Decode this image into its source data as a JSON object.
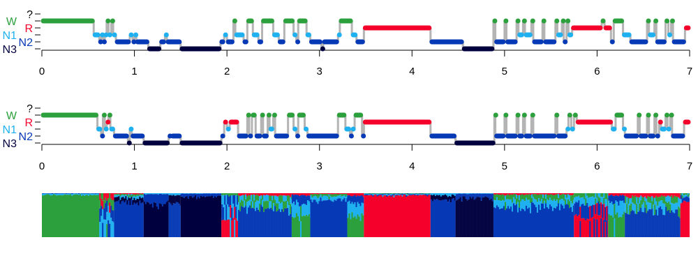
{
  "chart_data": [
    {
      "type": "line",
      "title": "",
      "xlabel": "",
      "ylabel": "",
      "xlim": [
        0,
        7
      ],
      "x_ticks": [
        "0",
        "1",
        "2",
        "3",
        "4",
        "5",
        "6",
        "7"
      ],
      "stages": [
        "?",
        "W",
        "R",
        "N1",
        "N2",
        "N3"
      ],
      "segments": [
        [
          0,
          0.56,
          "W"
        ],
        [
          0.56,
          0.62,
          "N1"
        ],
        [
          0.62,
          0.64,
          "N2"
        ],
        [
          0.64,
          0.66,
          "N1"
        ],
        [
          0.66,
          0.68,
          "N2"
        ],
        [
          0.68,
          0.7,
          "N1"
        ],
        [
          0.7,
          0.72,
          "W"
        ],
        [
          0.72,
          0.75,
          "N1"
        ],
        [
          0.75,
          0.77,
          "W"
        ],
        [
          0.77,
          0.8,
          "N1"
        ],
        [
          0.8,
          0.95,
          "N2"
        ],
        [
          0.95,
          0.98,
          "N1"
        ],
        [
          0.98,
          1.0,
          "N2"
        ],
        [
          1.0,
          1.02,
          "N1"
        ],
        [
          1.02,
          1.15,
          "N2"
        ],
        [
          1.15,
          1.28,
          "N3"
        ],
        [
          1.28,
          1.33,
          "N2"
        ],
        [
          1.33,
          1.35,
          "N1"
        ],
        [
          1.35,
          1.5,
          "N2"
        ],
        [
          1.5,
          1.93,
          "N3"
        ],
        [
          1.93,
          1.97,
          "N2"
        ],
        [
          1.97,
          2.0,
          "N1"
        ],
        [
          2.0,
          2.07,
          "N2"
        ],
        [
          2.07,
          2.09,
          "W"
        ],
        [
          2.09,
          2.18,
          "N1"
        ],
        [
          2.18,
          2.22,
          "N2"
        ],
        [
          2.22,
          2.28,
          "W"
        ],
        [
          2.28,
          2.34,
          "N1"
        ],
        [
          2.34,
          2.38,
          "N2"
        ],
        [
          2.38,
          2.5,
          "W"
        ],
        [
          2.5,
          2.56,
          "N1"
        ],
        [
          2.56,
          2.62,
          "N2"
        ],
        [
          2.62,
          2.72,
          "W"
        ],
        [
          2.72,
          2.75,
          "N1"
        ],
        [
          2.75,
          2.77,
          "N2"
        ],
        [
          2.77,
          2.86,
          "W"
        ],
        [
          2.86,
          2.9,
          "N1"
        ],
        [
          2.9,
          3.02,
          "N2"
        ],
        [
          3.02,
          3.04,
          "N3"
        ],
        [
          3.04,
          3.2,
          "N2"
        ],
        [
          3.2,
          3.22,
          "N1"
        ],
        [
          3.22,
          3.35,
          "W"
        ],
        [
          3.35,
          3.4,
          "N1"
        ],
        [
          3.4,
          3.48,
          "N2"
        ],
        [
          3.48,
          4.2,
          "R"
        ],
        [
          4.2,
          4.55,
          "N2"
        ],
        [
          4.55,
          4.88,
          "N3"
        ],
        [
          4.88,
          4.9,
          "W"
        ],
        [
          4.9,
          5.0,
          "N2"
        ],
        [
          5.0,
          5.02,
          "W"
        ],
        [
          5.02,
          5.13,
          "N2"
        ],
        [
          5.13,
          5.15,
          "W"
        ],
        [
          5.15,
          5.2,
          "N1"
        ],
        [
          5.2,
          5.22,
          "W"
        ],
        [
          5.22,
          5.29,
          "N1"
        ],
        [
          5.29,
          5.31,
          "W"
        ],
        [
          5.31,
          5.41,
          "N2"
        ],
        [
          5.41,
          5.43,
          "W"
        ],
        [
          5.43,
          5.55,
          "N2"
        ],
        [
          5.55,
          5.57,
          "W"
        ],
        [
          5.57,
          5.62,
          "N1"
        ],
        [
          5.62,
          5.64,
          "W"
        ],
        [
          5.64,
          5.67,
          "N2"
        ],
        [
          5.67,
          5.69,
          "W"
        ],
        [
          5.69,
          5.73,
          "N1"
        ],
        [
          5.73,
          6.05,
          "R"
        ],
        [
          6.05,
          6.08,
          "W"
        ],
        [
          6.08,
          6.15,
          "R"
        ],
        [
          6.15,
          6.18,
          "N2"
        ],
        [
          6.18,
          6.28,
          "W"
        ],
        [
          6.28,
          6.36,
          "N1"
        ],
        [
          6.36,
          6.54,
          "N2"
        ],
        [
          6.54,
          6.56,
          "W"
        ],
        [
          6.56,
          6.62,
          "N1"
        ],
        [
          6.62,
          6.64,
          "W"
        ],
        [
          6.64,
          6.74,
          "N2"
        ],
        [
          6.74,
          6.77,
          "W"
        ],
        [
          6.77,
          6.8,
          "N1"
        ],
        [
          6.8,
          6.82,
          "W"
        ],
        [
          6.82,
          6.95,
          "N2"
        ],
        [
          6.95,
          7.0,
          "R"
        ]
      ]
    },
    {
      "type": "line",
      "title": "",
      "xlabel": "",
      "ylabel": "",
      "xlim": [
        0,
        7
      ],
      "x_ticks": [
        "0",
        "1",
        "2",
        "3",
        "4",
        "5",
        "6",
        "7"
      ],
      "stages": [
        "?",
        "W",
        "R",
        "N1",
        "N2",
        "N3"
      ],
      "segments": [
        [
          0,
          0.6,
          "W"
        ],
        [
          0.6,
          0.64,
          "N1"
        ],
        [
          0.64,
          0.66,
          "N2"
        ],
        [
          0.66,
          0.68,
          "W"
        ],
        [
          0.68,
          0.7,
          "N1"
        ],
        [
          0.7,
          0.72,
          "R"
        ],
        [
          0.72,
          0.74,
          "W"
        ],
        [
          0.74,
          0.78,
          "N1"
        ],
        [
          0.78,
          0.93,
          "N2"
        ],
        [
          0.93,
          0.95,
          "N3"
        ],
        [
          0.95,
          0.97,
          "N1"
        ],
        [
          0.97,
          1.1,
          "N2"
        ],
        [
          1.1,
          1.37,
          "N3"
        ],
        [
          1.37,
          1.4,
          "N2"
        ],
        [
          1.4,
          1.5,
          "N2"
        ],
        [
          1.5,
          1.94,
          "N3"
        ],
        [
          1.94,
          1.97,
          "N2"
        ],
        [
          1.97,
          2.0,
          "R"
        ],
        [
          2.0,
          2.03,
          "N1"
        ],
        [
          2.03,
          2.12,
          "R"
        ],
        [
          2.12,
          2.22,
          "N2"
        ],
        [
          2.22,
          2.24,
          "W"
        ],
        [
          2.24,
          2.27,
          "N2"
        ],
        [
          2.27,
          2.31,
          "W"
        ],
        [
          2.31,
          2.37,
          "N2"
        ],
        [
          2.37,
          2.39,
          "W"
        ],
        [
          2.39,
          2.44,
          "N2"
        ],
        [
          2.44,
          2.46,
          "W"
        ],
        [
          2.46,
          2.5,
          "N1"
        ],
        [
          2.5,
          2.52,
          "W"
        ],
        [
          2.52,
          2.66,
          "N2"
        ],
        [
          2.66,
          2.72,
          "W"
        ],
        [
          2.72,
          2.75,
          "N1"
        ],
        [
          2.75,
          2.77,
          "N2"
        ],
        [
          2.77,
          2.84,
          "W"
        ],
        [
          2.84,
          2.87,
          "N1"
        ],
        [
          2.87,
          3.2,
          "N2"
        ],
        [
          3.2,
          3.28,
          "W"
        ],
        [
          3.28,
          3.33,
          "N1"
        ],
        [
          3.33,
          3.35,
          "N2"
        ],
        [
          3.35,
          3.38,
          "N1"
        ],
        [
          3.38,
          3.46,
          "W"
        ],
        [
          3.46,
          3.48,
          "N2"
        ],
        [
          3.48,
          4.2,
          "R"
        ],
        [
          4.2,
          4.47,
          "N2"
        ],
        [
          4.47,
          4.89,
          "N3"
        ],
        [
          4.89,
          4.9,
          "W"
        ],
        [
          4.9,
          5.0,
          "N2"
        ],
        [
          5.0,
          5.02,
          "W"
        ],
        [
          5.02,
          5.13,
          "N2"
        ],
        [
          5.13,
          5.15,
          "W"
        ],
        [
          5.15,
          5.2,
          "N2"
        ],
        [
          5.2,
          5.22,
          "W"
        ],
        [
          5.22,
          5.29,
          "N2"
        ],
        [
          5.29,
          5.31,
          "W"
        ],
        [
          5.31,
          5.55,
          "N2"
        ],
        [
          5.55,
          5.57,
          "W"
        ],
        [
          5.57,
          5.67,
          "N2"
        ],
        [
          5.67,
          5.69,
          "N1"
        ],
        [
          5.69,
          5.72,
          "W"
        ],
        [
          5.72,
          5.75,
          "N1"
        ],
        [
          5.75,
          5.78,
          "W"
        ],
        [
          5.78,
          6.16,
          "R"
        ],
        [
          6.16,
          6.2,
          "N1"
        ],
        [
          6.2,
          6.28,
          "W"
        ],
        [
          6.28,
          6.3,
          "N1"
        ],
        [
          6.3,
          6.44,
          "N2"
        ],
        [
          6.44,
          6.46,
          "W"
        ],
        [
          6.46,
          6.54,
          "N2"
        ],
        [
          6.54,
          6.56,
          "W"
        ],
        [
          6.56,
          6.62,
          "N2"
        ],
        [
          6.62,
          6.64,
          "W"
        ],
        [
          6.64,
          6.67,
          "N2"
        ],
        [
          6.67,
          6.69,
          "R"
        ],
        [
          6.69,
          6.74,
          "N1"
        ],
        [
          6.74,
          6.76,
          "W"
        ],
        [
          6.76,
          6.79,
          "N1"
        ],
        [
          6.79,
          6.81,
          "W"
        ],
        [
          6.81,
          6.94,
          "N2"
        ],
        [
          6.94,
          7.0,
          "R"
        ]
      ]
    },
    {
      "type": "area",
      "title": "",
      "description_of_values": "stacked stage probabilities per time span",
      "xlim": [
        0,
        7
      ],
      "ylim": [
        0,
        1
      ],
      "order": [
        "W",
        "R",
        "N1",
        "N2",
        "N3"
      ],
      "segments": [
        [
          0,
          0.62,
          [
            0.96,
            0,
            0.03,
            0.01,
            0
          ]
        ],
        [
          0.62,
          0.78,
          [
            0.2,
            0.15,
            0.35,
            0.3,
            0
          ]
        ],
        [
          0.78,
          1.1,
          [
            0.03,
            0.02,
            0.05,
            0.8,
            0.1
          ]
        ],
        [
          1.1,
          1.37,
          [
            0,
            0,
            0.02,
            0.2,
            0.78
          ]
        ],
        [
          1.37,
          1.5,
          [
            0,
            0,
            0.05,
            0.75,
            0.2
          ]
        ],
        [
          1.5,
          1.94,
          [
            0,
            0,
            0.01,
            0.07,
            0.92
          ]
        ],
        [
          1.94,
          2.12,
          [
            0.05,
            0.35,
            0.3,
            0.3,
            0
          ]
        ],
        [
          2.12,
          2.7,
          [
            0.15,
            0.05,
            0.15,
            0.65,
            0
          ]
        ],
        [
          2.7,
          2.9,
          [
            0.45,
            0.05,
            0.3,
            0.2,
            0
          ]
        ],
        [
          2.9,
          3.3,
          [
            0.05,
            0.02,
            0.08,
            0.85,
            0
          ]
        ],
        [
          3.3,
          3.48,
          [
            0.5,
            0.05,
            0.3,
            0.15,
            0
          ]
        ],
        [
          3.48,
          4.2,
          [
            0.01,
            0.95,
            0.02,
            0.02,
            0
          ]
        ],
        [
          4.2,
          4.47,
          [
            0,
            0,
            0.05,
            0.85,
            0.1
          ]
        ],
        [
          4.47,
          4.88,
          [
            0,
            0,
            0.01,
            0.1,
            0.89
          ]
        ],
        [
          4.88,
          5.75,
          [
            0.12,
            0.03,
            0.15,
            0.7,
            0
          ]
        ],
        [
          5.75,
          6.12,
          [
            0.1,
            0.45,
            0.15,
            0.3,
            0
          ]
        ],
        [
          6.12,
          6.3,
          [
            0.5,
            0.05,
            0.3,
            0.15,
            0
          ]
        ],
        [
          6.3,
          6.9,
          [
            0.15,
            0.08,
            0.17,
            0.6,
            0
          ]
        ],
        [
          6.9,
          7.0,
          [
            0.05,
            0.8,
            0.05,
            0.1,
            0
          ]
        ]
      ]
    }
  ],
  "colors": {
    "?": "#000000",
    "W": "#2ca03c",
    "R": "#f5002a",
    "N1": "#1eb0ef",
    "N2": "#0639b5",
    "N3": "#00003f",
    "connector": "#b4b4b4"
  }
}
